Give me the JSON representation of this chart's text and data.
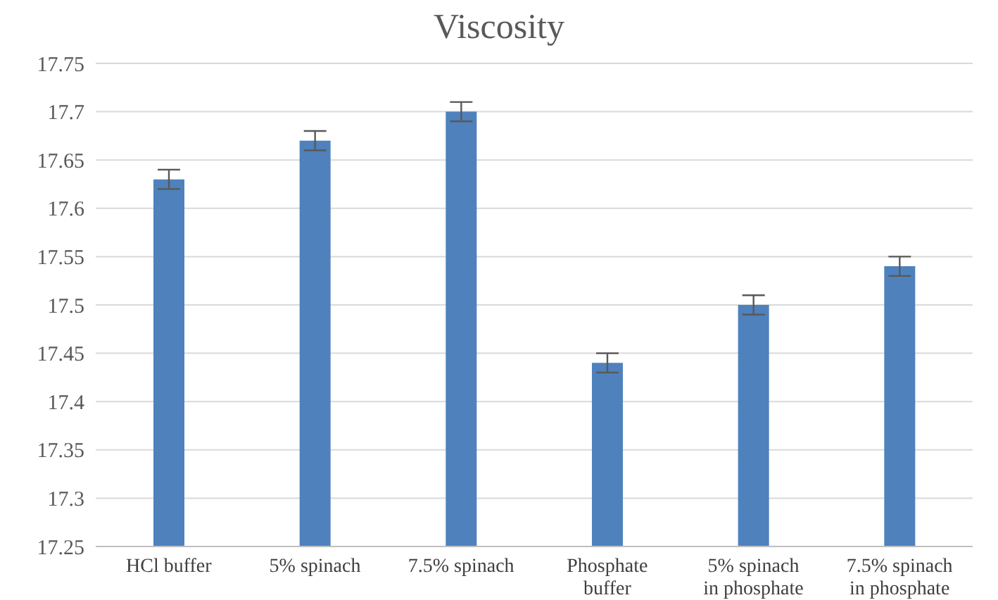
{
  "chart_data": {
    "type": "bar",
    "title": "Viscosity",
    "categories": [
      "HCl buffer",
      "5% spinach",
      "7.5% spinach",
      "Phosphate buffer",
      "5% spinach in phosphate",
      "7.5% spinach in phosphate"
    ],
    "series": [
      {
        "color": "#4f81bd",
        "values": [
          17.63,
          17.67,
          17.7,
          17.44,
          17.5,
          17.54
        ],
        "errors": [
          0.01,
          0.01,
          0.01,
          0.01,
          0.01,
          0.01
        ]
      }
    ],
    "ylim": [
      17.25,
      17.75
    ],
    "yticks": [
      17.25,
      17.3,
      17.35,
      17.4,
      17.45,
      17.5,
      17.55,
      17.6,
      17.65,
      17.7,
      17.75
    ],
    "grid": "y"
  }
}
